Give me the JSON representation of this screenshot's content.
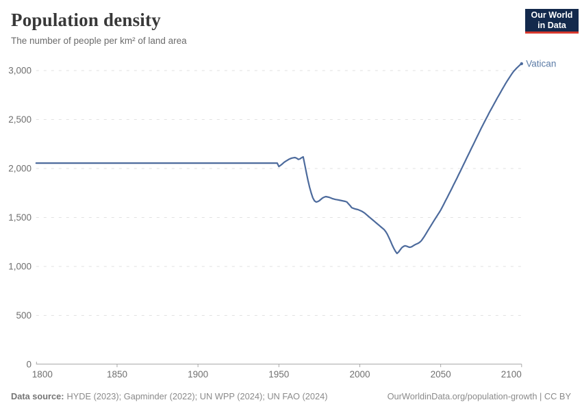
{
  "header": {
    "title": "Population density",
    "subtitle": "The number of people per km² of land area"
  },
  "logo": {
    "line1": "Our World",
    "line2": "in Data"
  },
  "colors": {
    "line": "#4c6a9c",
    "series_label": "#5b7ba6",
    "gridline": "#e2e2e2",
    "axis": "#a8a8a8",
    "tick_text": "#6f6f6f",
    "logo_bg": "#13294c",
    "logo_accent": "#d7382d"
  },
  "chart_data": {
    "type": "line",
    "title": "Population density",
    "subtitle": "The number of people per km² of land area",
    "xlabel": "",
    "ylabel": "",
    "x_range": [
      1800,
      2100
    ],
    "y_range": [
      0,
      3000
    ],
    "grid": "horizontal-dashed",
    "legend_position": "end-of-line-label",
    "x_ticks": [
      {
        "v": 1800,
        "label": "1800"
      },
      {
        "v": 1850,
        "label": "1850"
      },
      {
        "v": 1900,
        "label": "1900"
      },
      {
        "v": 1950,
        "label": "1950"
      },
      {
        "v": 2000,
        "label": "2000"
      },
      {
        "v": 2050,
        "label": "2050"
      },
      {
        "v": 2100,
        "label": "2100"
      }
    ],
    "y_ticks": [
      {
        "v": 0,
        "label": "0"
      },
      {
        "v": 500,
        "label": "500"
      },
      {
        "v": 1000,
        "label": "1,000"
      },
      {
        "v": 1500,
        "label": "1,500"
      },
      {
        "v": 2000,
        "label": "2,000"
      },
      {
        "v": 2500,
        "label": "2,500"
      },
      {
        "v": 3000,
        "label": "3,000"
      }
    ],
    "series": [
      {
        "name": "Vatican",
        "points": [
          [
            1800,
            2055
          ],
          [
            1820,
            2055
          ],
          [
            1840,
            2055
          ],
          [
            1860,
            2055
          ],
          [
            1880,
            2055
          ],
          [
            1900,
            2055
          ],
          [
            1920,
            2055
          ],
          [
            1940,
            2055
          ],
          [
            1949,
            2055
          ],
          [
            1950,
            2020
          ],
          [
            1951,
            2032
          ],
          [
            1952,
            2045
          ],
          [
            1953,
            2060
          ],
          [
            1954,
            2072
          ],
          [
            1955,
            2082
          ],
          [
            1956,
            2092
          ],
          [
            1957,
            2100
          ],
          [
            1958,
            2106
          ],
          [
            1959,
            2110
          ],
          [
            1960,
            2112
          ],
          [
            1961,
            2105
          ],
          [
            1962,
            2093
          ],
          [
            1963,
            2098
          ],
          [
            1964,
            2110
          ],
          [
            1965,
            2119
          ],
          [
            1966,
            2040
          ],
          [
            1967,
            1955
          ],
          [
            1968,
            1878
          ],
          [
            1969,
            1808
          ],
          [
            1970,
            1748
          ],
          [
            1971,
            1700
          ],
          [
            1972,
            1670
          ],
          [
            1973,
            1658
          ],
          [
            1974,
            1662
          ],
          [
            1975,
            1671
          ],
          [
            1976,
            1685
          ],
          [
            1977,
            1699
          ],
          [
            1978,
            1708
          ],
          [
            1979,
            1713
          ],
          [
            1980,
            1710
          ],
          [
            1981,
            1706
          ],
          [
            1982,
            1700
          ],
          [
            1983,
            1693
          ],
          [
            1984,
            1688
          ],
          [
            1985,
            1684
          ],
          [
            1986,
            1681
          ],
          [
            1987,
            1678
          ],
          [
            1988,
            1675
          ],
          [
            1989,
            1671
          ],
          [
            1990,
            1668
          ],
          [
            1991,
            1664
          ],
          [
            1992,
            1658
          ],
          [
            1993,
            1640
          ],
          [
            1994,
            1622
          ],
          [
            1995,
            1601
          ],
          [
            1996,
            1594
          ],
          [
            1997,
            1588
          ],
          [
            1998,
            1584
          ],
          [
            1999,
            1580
          ],
          [
            2000,
            1573
          ],
          [
            2001,
            1566
          ],
          [
            2002,
            1556
          ],
          [
            2003,
            1545
          ],
          [
            2004,
            1531
          ],
          [
            2005,
            1517
          ],
          [
            2006,
            1503
          ],
          [
            2007,
            1489
          ],
          [
            2008,
            1475
          ],
          [
            2009,
            1461
          ],
          [
            2010,
            1447
          ],
          [
            2011,
            1433
          ],
          [
            2012,
            1419
          ],
          [
            2013,
            1405
          ],
          [
            2014,
            1391
          ],
          [
            2015,
            1377
          ],
          [
            2016,
            1356
          ],
          [
            2017,
            1330
          ],
          [
            2018,
            1295
          ],
          [
            2019,
            1258
          ],
          [
            2020,
            1220
          ],
          [
            2021,
            1185
          ],
          [
            2022,
            1155
          ],
          [
            2023,
            1133
          ],
          [
            2024,
            1148
          ],
          [
            2025,
            1170
          ],
          [
            2026,
            1192
          ],
          [
            2027,
            1205
          ],
          [
            2028,
            1211
          ],
          [
            2029,
            1207
          ],
          [
            2030,
            1199
          ],
          [
            2031,
            1196
          ],
          [
            2032,
            1201
          ],
          [
            2033,
            1211
          ],
          [
            2034,
            1221
          ],
          [
            2035,
            1229
          ],
          [
            2036,
            1236
          ],
          [
            2037,
            1247
          ],
          [
            2038,
            1262
          ],
          [
            2039,
            1285
          ],
          [
            2040,
            1310
          ],
          [
            2041,
            1337
          ],
          [
            2042,
            1364
          ],
          [
            2043,
            1391
          ],
          [
            2044,
            1418
          ],
          [
            2045,
            1445
          ],
          [
            2046,
            1471
          ],
          [
            2047,
            1497
          ],
          [
            2048,
            1523
          ],
          [
            2049,
            1549
          ],
          [
            2050,
            1575
          ],
          [
            2051,
            1607
          ],
          [
            2052,
            1639
          ],
          [
            2053,
            1671
          ],
          [
            2054,
            1703
          ],
          [
            2055,
            1735
          ],
          [
            2056,
            1768
          ],
          [
            2057,
            1801
          ],
          [
            2058,
            1834
          ],
          [
            2059,
            1867
          ],
          [
            2060,
            1900
          ],
          [
            2061,
            1934
          ],
          [
            2062,
            1968
          ],
          [
            2063,
            2002
          ],
          [
            2064,
            2036
          ],
          [
            2065,
            2070
          ],
          [
            2066,
            2104
          ],
          [
            2067,
            2138
          ],
          [
            2068,
            2172
          ],
          [
            2069,
            2206
          ],
          [
            2070,
            2240
          ],
          [
            2071,
            2274
          ],
          [
            2072,
            2308
          ],
          [
            2073,
            2342
          ],
          [
            2074,
            2376
          ],
          [
            2075,
            2410
          ],
          [
            2076,
            2442
          ],
          [
            2077,
            2474
          ],
          [
            2078,
            2506
          ],
          [
            2079,
            2538
          ],
          [
            2080,
            2570
          ],
          [
            2081,
            2600
          ],
          [
            2082,
            2630
          ],
          [
            2083,
            2660
          ],
          [
            2084,
            2690
          ],
          [
            2085,
            2720
          ],
          [
            2086,
            2749
          ],
          [
            2087,
            2778
          ],
          [
            2088,
            2807
          ],
          [
            2089,
            2836
          ],
          [
            2090,
            2865
          ],
          [
            2091,
            2891
          ],
          [
            2092,
            2917
          ],
          [
            2093,
            2943
          ],
          [
            2094,
            2967
          ],
          [
            2095,
            2990
          ],
          [
            2096,
            3008
          ],
          [
            2097,
            3026
          ],
          [
            2098,
            3042
          ],
          [
            2099,
            3057
          ],
          [
            2100,
            3070
          ]
        ]
      }
    ]
  },
  "footer": {
    "source_label": "Data source:",
    "source_text": "HYDE (2023); Gapminder (2022); UN WPP (2024); UN FAO (2024)",
    "license_text": "OurWorldinData.org/population-growth | CC BY"
  }
}
